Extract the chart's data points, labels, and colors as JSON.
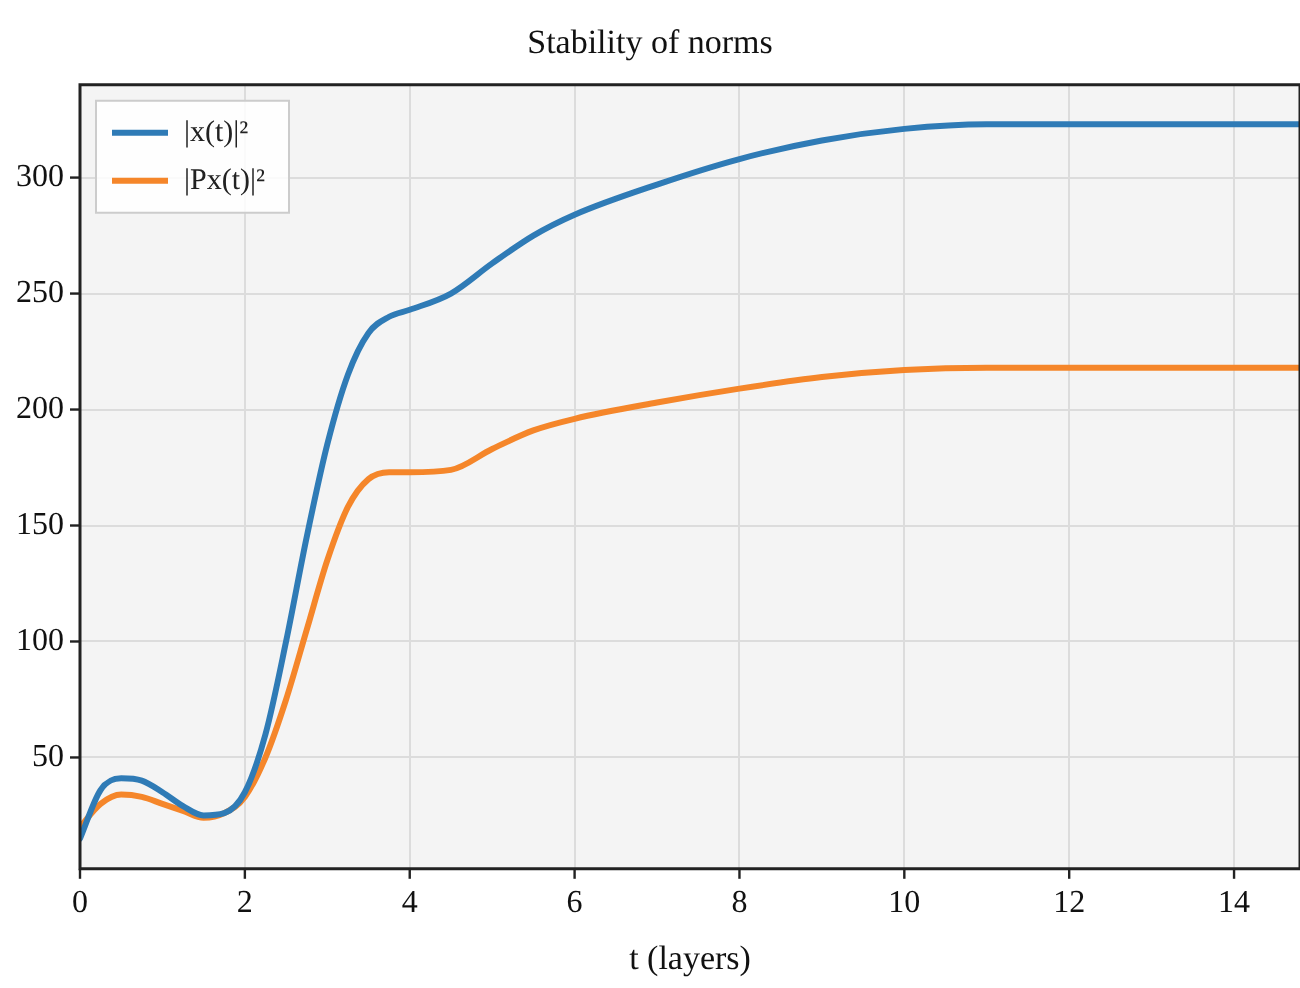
{
  "chart_data": {
    "type": "line",
    "title": "Stability of norms",
    "xlabel": "t (layers)",
    "xlim": [
      0,
      14.8
    ],
    "xticks": [
      0,
      2,
      4,
      6,
      8,
      10,
      12,
      14
    ],
    "ylim": [
      2,
      340
    ],
    "yticks": [
      50,
      100,
      150,
      200,
      250,
      300
    ],
    "grid": true,
    "legend": "top left",
    "marker": "none",
    "line_style": "solid",
    "series": [
      {
        "name": "|x(t)|²",
        "color": "#2f7bb6",
        "x": [
          0,
          0.25,
          0.5,
          0.75,
          1,
          1.25,
          1.5,
          1.75,
          2,
          2.25,
          2.5,
          2.75,
          3,
          3.25,
          3.5,
          3.75,
          4,
          4.5,
          5,
          5.5,
          6,
          7,
          8,
          9,
          10,
          11,
          12,
          13,
          14.8
        ],
        "values": [
          15,
          36,
          41,
          40,
          35,
          29,
          25,
          26,
          35,
          60,
          100,
          145,
          185,
          215,
          233,
          240,
          243,
          250,
          263,
          275,
          284,
          297,
          308,
          316,
          321,
          323,
          323,
          323,
          323
        ]
      },
      {
        "name": "|Px(t)|²",
        "color": "#f5862a",
        "x": [
          0,
          0.25,
          0.5,
          0.75,
          1,
          1.25,
          1.5,
          1.75,
          2,
          2.25,
          2.5,
          2.75,
          3,
          3.25,
          3.5,
          3.75,
          4,
          4.5,
          5,
          5.5,
          6,
          7,
          8,
          9,
          10,
          11,
          12,
          13,
          14.8
        ],
        "values": [
          20,
          30,
          34,
          33,
          30,
          27,
          24,
          26,
          33,
          50,
          75,
          105,
          135,
          158,
          170,
          173,
          173,
          174,
          183,
          191,
          196,
          203,
          209,
          214,
          217,
          218,
          218,
          218,
          218
        ]
      }
    ]
  }
}
